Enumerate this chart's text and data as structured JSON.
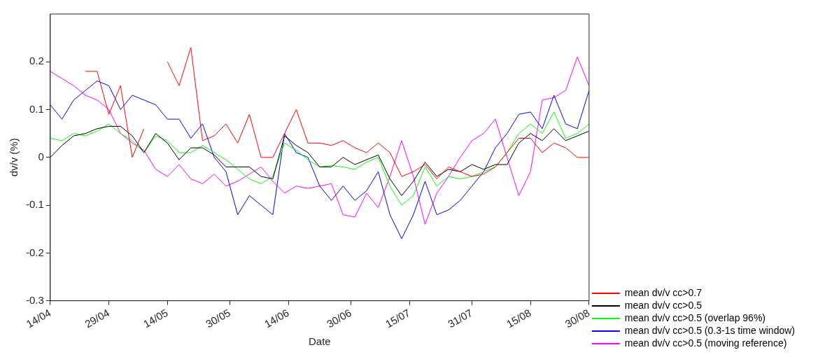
{
  "chart_data": {
    "type": "line",
    "xlabel": "Date",
    "ylabel": "dv/v (%)",
    "x": [
      "--04-14",
      "--04-17",
      "--04-20",
      "--04-23",
      "--04-26",
      "--04-29",
      "--05-02",
      "--05-05",
      "--05-08",
      "--05-11",
      "--05-14",
      "--05-17",
      "--05-20",
      "--05-23",
      "--05-26",
      "--05-29",
      "--06-01",
      "--06-04",
      "--06-07",
      "--06-10",
      "--06-13",
      "--06-16",
      "--06-19",
      "--06-22",
      "--06-25",
      "--06-28",
      "--07-01",
      "--07-04",
      "--07-07",
      "--07-10",
      "--07-13",
      "--07-16",
      "--07-19",
      "--07-22",
      "--07-25",
      "--07-28",
      "--07-31",
      "--08-03",
      "--08-06",
      "--08-09",
      "--08-12",
      "--08-15",
      "--08-18",
      "--08-21",
      "--08-24",
      "--08-27",
      "--08-30"
    ],
    "series": [
      {
        "name": "mean dv/v cc>0.7",
        "color": "#ff0000",
        "values": [
          null,
          null,
          null,
          0.18,
          0.18,
          0.09,
          0.15,
          0.0,
          0.06,
          null,
          0.2,
          0.15,
          0.23,
          0.035,
          0.045,
          0.07,
          0.03,
          0.09,
          0.0,
          0.0,
          0.05,
          0.1,
          0.03,
          0.03,
          0.025,
          0.035,
          0.02,
          0.01,
          0.03,
          0.01,
          -0.04,
          -0.03,
          -0.015,
          -0.045,
          -0.02,
          -0.03,
          -0.04,
          -0.035,
          -0.02,
          0.01,
          0.04,
          0.04,
          0.01,
          0.03,
          0.02,
          0.0,
          0.0
        ]
      },
      {
        "name": "mean dv/v cc>0.5",
        "color": "#000000",
        "values": [
          0.0,
          0.025,
          0.045,
          0.05,
          0.06,
          0.065,
          0.065,
          0.045,
          0.01,
          0.05,
          0.03,
          -0.005,
          0.02,
          0.02,
          0.005,
          -0.02,
          -0.02,
          -0.02,
          -0.04,
          -0.045,
          0.045,
          0.025,
          0.01,
          -0.02,
          -0.02,
          0.0,
          -0.015,
          -0.005,
          0.005,
          -0.045,
          -0.08,
          -0.05,
          -0.01,
          -0.04,
          -0.025,
          -0.03,
          -0.015,
          -0.025,
          -0.015,
          -0.015,
          0.03,
          0.05,
          0.035,
          0.06,
          0.035,
          0.045,
          0.055
        ]
      },
      {
        "name": "mean dv/v cc>0.5 (overlap 96%)",
        "color": "#00ff00",
        "values": [
          0.04,
          0.035,
          0.05,
          0.045,
          0.055,
          0.07,
          0.05,
          0.035,
          0.01,
          0.045,
          0.035,
          0.01,
          0.01,
          0.025,
          0.01,
          -0.005,
          -0.025,
          -0.045,
          -0.055,
          -0.04,
          0.03,
          0.015,
          -0.005,
          -0.02,
          -0.017,
          -0.02,
          -0.025,
          -0.01,
          0.0,
          -0.06,
          -0.1,
          -0.08,
          -0.02,
          -0.06,
          -0.04,
          -0.045,
          -0.04,
          -0.03,
          -0.02,
          0.01,
          0.05,
          0.07,
          0.05,
          0.095,
          0.04,
          0.05,
          0.07
        ]
      },
      {
        "name": "mean dv/v cc>0.5 (0.3-1s time window)",
        "color": "#0000ff",
        "values": [
          0.11,
          0.08,
          0.12,
          0.14,
          0.16,
          0.15,
          0.1,
          0.13,
          0.12,
          0.11,
          0.08,
          0.08,
          0.04,
          0.07,
          0.0,
          -0.03,
          -0.12,
          -0.08,
          -0.1,
          -0.12,
          0.05,
          0.01,
          0.0,
          -0.06,
          -0.09,
          -0.06,
          -0.09,
          -0.07,
          -0.03,
          -0.12,
          -0.17,
          -0.12,
          -0.05,
          -0.12,
          -0.11,
          -0.09,
          -0.06,
          -0.03,
          0.02,
          0.05,
          0.09,
          0.095,
          0.06,
          0.13,
          0.07,
          0.06,
          0.14
        ]
      },
      {
        "name": "mean dv/v cc>0.5 (moving reference)",
        "color": "#ff00ff",
        "values": [
          0.18,
          0.165,
          0.15,
          0.13,
          0.12,
          0.1,
          0.05,
          0.03,
          0.015,
          -0.025,
          -0.04,
          -0.015,
          -0.045,
          -0.055,
          -0.035,
          -0.06,
          -0.05,
          -0.035,
          -0.02,
          -0.05,
          -0.075,
          -0.06,
          -0.065,
          -0.06,
          -0.055,
          -0.12,
          -0.125,
          -0.075,
          -0.105,
          -0.04,
          0.035,
          -0.04,
          -0.14,
          -0.075,
          -0.04,
          0.0,
          0.035,
          0.05,
          0.08,
          0.0,
          -0.08,
          -0.03,
          0.12,
          0.125,
          0.14,
          0.21,
          0.15
        ]
      }
    ],
    "xlim": [
      "--04-14",
      "--08-30"
    ],
    "xticks": [
      {
        "value": "--04-14",
        "label": "14/04"
      },
      {
        "value": "--04-29",
        "label": "29/04"
      },
      {
        "value": "--05-14",
        "label": "14/05"
      },
      {
        "value": "--05-30",
        "label": "30/05"
      },
      {
        "value": "--06-14",
        "label": "14/06"
      },
      {
        "value": "--06-30",
        "label": "30/06"
      },
      {
        "value": "--07-15",
        "label": "15/07"
      },
      {
        "value": "--07-31",
        "label": "31/07"
      },
      {
        "value": "--08-15",
        "label": "15/08"
      },
      {
        "value": "--08-30",
        "label": "30/08"
      }
    ],
    "ylim": [
      -0.3,
      0.3
    ],
    "yticks": [
      -0.3,
      -0.2,
      -0.1,
      0,
      0.1,
      0.2
    ],
    "grid": false,
    "legend": "right",
    "marker": "none",
    "line_style": "solid"
  }
}
